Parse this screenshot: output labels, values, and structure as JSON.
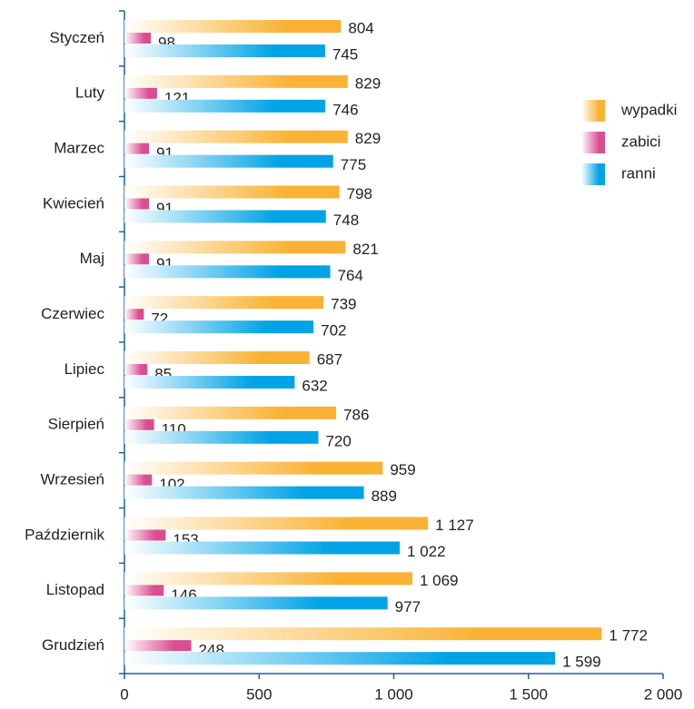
{
  "chart_data": {
    "type": "bar",
    "orientation": "horizontal",
    "categories": [
      "Styczeń",
      "Luty",
      "Marzec",
      "Kwiecień",
      "Maj",
      "Czerwiec",
      "Lipiec",
      "Sierpień",
      "Wrzesień",
      "Październik",
      "Listopad",
      "Grudzień"
    ],
    "series": [
      {
        "name": "wypadki",
        "color": "#f9b233",
        "values": [
          804,
          829,
          829,
          798,
          821,
          739,
          687,
          786,
          959,
          1127,
          1069,
          1772
        ],
        "value_labels": [
          "804",
          "829",
          "829",
          "798",
          "821",
          "739",
          "687",
          "786",
          "959",
          "1 127",
          "1 069",
          "1 772"
        ]
      },
      {
        "name": "zabici",
        "color": "#d94d92",
        "values": [
          98,
          121,
          91,
          91,
          91,
          72,
          85,
          110,
          102,
          153,
          146,
          248
        ],
        "value_labels": [
          "98",
          "121",
          "91",
          "91",
          "91",
          "72",
          "85",
          "110",
          "102",
          "153",
          "146",
          "248"
        ]
      },
      {
        "name": "ranni",
        "color": "#00a3e6",
        "values": [
          745,
          746,
          775,
          748,
          764,
          702,
          632,
          720,
          889,
          1022,
          977,
          1599
        ],
        "value_labels": [
          "745",
          "746",
          "775",
          "748",
          "764",
          "702",
          "632",
          "720",
          "889",
          "1 022",
          "977",
          "1 599"
        ]
      }
    ],
    "xlim": [
      0,
      2000
    ],
    "xticks": [
      0,
      500,
      {
        "value": 1000,
        "label": "1 000"
      },
      {
        "value": 1500,
        "label": "1 500"
      },
      {
        "value": 2000,
        "label": "2 000"
      }
    ],
    "legend": "right"
  }
}
